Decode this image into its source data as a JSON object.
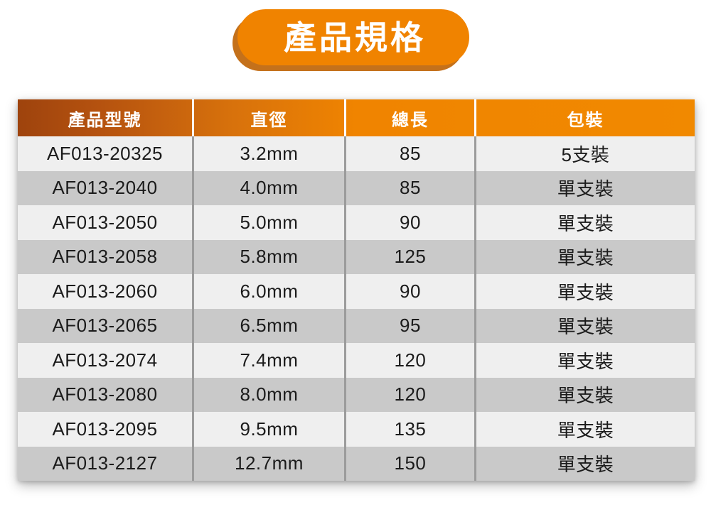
{
  "title": {
    "label": "產品規格"
  },
  "table": {
    "headers": [
      "產品型號",
      "直徑",
      "總長",
      "包裝"
    ],
    "rows": [
      [
        "AF013-20325",
        "3.2mm",
        "85",
        "5支裝"
      ],
      [
        "AF013-2040",
        "4.0mm",
        "85",
        "單支裝"
      ],
      [
        "AF013-2050",
        "5.0mm",
        "90",
        "單支裝"
      ],
      [
        "AF013-2058",
        "5.8mm",
        "125",
        "單支裝"
      ],
      [
        "AF013-2060",
        "6.0mm",
        "90",
        "單支裝"
      ],
      [
        "AF013-2065",
        "6.5mm",
        "95",
        "單支裝"
      ],
      [
        "AF013-2074",
        "7.4mm",
        "120",
        "單支裝"
      ],
      [
        "AF013-2080",
        "8.0mm",
        "120",
        "單支裝"
      ],
      [
        "AF013-2095",
        "9.5mm",
        "135",
        "單支裝"
      ],
      [
        "AF013-2127",
        "12.7mm",
        "150",
        "單支裝"
      ]
    ]
  },
  "colors": {
    "accent_orange": "#F08300",
    "header_gradient_start": "#9E430D",
    "header_gradient_end": "#F18900",
    "badge_shadow": "#C4711B",
    "row_light": "#EFEFEF",
    "row_dark": "#C9C9C9",
    "separator_body": "#9B9B9B",
    "separator_header": "#FFFFFF",
    "text_body": "#1B1B1B",
    "text_header": "#FFFFFF"
  }
}
